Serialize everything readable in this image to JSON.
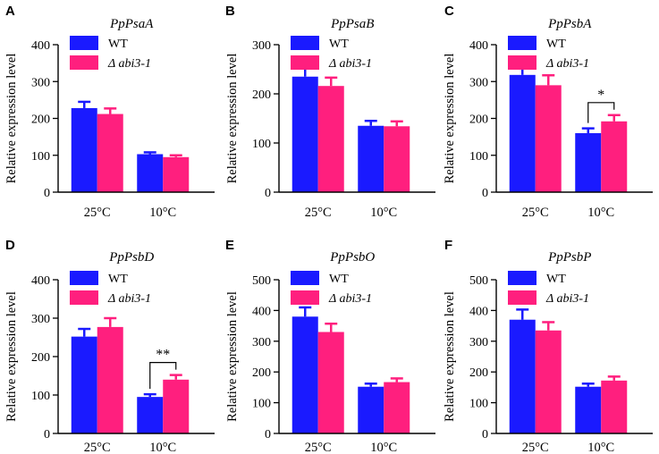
{
  "figure": {
    "legend": [
      {
        "name": "WT",
        "color": "#1a1aff"
      },
      {
        "name": "Δ abi3-1",
        "color": "#ff1f7e"
      }
    ],
    "error_color": {
      "WT": "#1a1aff",
      "mutant": "#ff1f7e"
    }
  },
  "chart_data": [
    {
      "panel": "A",
      "type": "bar",
      "title": "PpPsaA",
      "ylabel": "Relative expression level",
      "xlabel": "",
      "categories": [
        "25°C",
        "10°C"
      ],
      "ylim": [
        0,
        400
      ],
      "yticks": [
        0,
        100,
        200,
        300,
        400
      ],
      "series": [
        {
          "name": "WT",
          "values": [
            228,
            103
          ],
          "errors": [
            17,
            5
          ]
        },
        {
          "name": "Δ abi3-1",
          "values": [
            212,
            95
          ],
          "errors": [
            15,
            5
          ]
        }
      ],
      "significance": []
    },
    {
      "panel": "B",
      "type": "bar",
      "title": "PpPsaB",
      "ylabel": "Relative expression level",
      "xlabel": "",
      "categories": [
        "25°C",
        "10°C"
      ],
      "ylim": [
        0,
        300
      ],
      "yticks": [
        0,
        100,
        200,
        300
      ],
      "series": [
        {
          "name": "WT",
          "values": [
            235,
            135
          ],
          "errors": [
            20,
            10
          ]
        },
        {
          "name": "Δ abi3-1",
          "values": [
            216,
            134
          ],
          "errors": [
            17,
            10
          ]
        }
      ],
      "significance": []
    },
    {
      "panel": "C",
      "type": "bar",
      "title": "PpPsbA",
      "ylabel": "Relative expression level",
      "xlabel": "",
      "categories": [
        "25°C",
        "10°C"
      ],
      "ylim": [
        0,
        400
      ],
      "yticks": [
        0,
        100,
        200,
        300,
        400
      ],
      "series": [
        {
          "name": "WT",
          "values": [
            318,
            160
          ],
          "errors": [
            28,
            13
          ]
        },
        {
          "name": "Δ abi3-1",
          "values": [
            290,
            192
          ],
          "errors": [
            27,
            17
          ]
        }
      ],
      "significance": [
        {
          "category": "10°C",
          "label": "*"
        }
      ]
    },
    {
      "panel": "D",
      "type": "bar",
      "title": "PpPsbD",
      "ylabel": "Relative expression level",
      "xlabel": "",
      "categories": [
        "25°C",
        "10°C"
      ],
      "ylim": [
        0,
        400
      ],
      "yticks": [
        0,
        100,
        200,
        300,
        400
      ],
      "series": [
        {
          "name": "WT",
          "values": [
            252,
            95
          ],
          "errors": [
            20,
            7
          ]
        },
        {
          "name": "Δ abi3-1",
          "values": [
            277,
            140
          ],
          "errors": [
            23,
            12
          ]
        }
      ],
      "significance": [
        {
          "category": "10°C",
          "label": "**"
        }
      ]
    },
    {
      "panel": "E",
      "type": "bar",
      "title": "PpPsbO",
      "ylabel": "Relative expression level",
      "xlabel": "",
      "categories": [
        "25°C",
        "10°C"
      ],
      "ylim": [
        0,
        500
      ],
      "yticks": [
        0,
        100,
        200,
        300,
        400,
        500
      ],
      "series": [
        {
          "name": "WT",
          "values": [
            380,
            152
          ],
          "errors": [
            30,
            10
          ]
        },
        {
          "name": "Δ abi3-1",
          "values": [
            330,
            167
          ],
          "errors": [
            27,
            12
          ]
        }
      ],
      "significance": []
    },
    {
      "panel": "F",
      "type": "bar",
      "title": "PpPsbP",
      "ylabel": "Relative expression level",
      "xlabel": "",
      "categories": [
        "25°C",
        "10°C"
      ],
      "ylim": [
        0,
        500
      ],
      "yticks": [
        0,
        100,
        200,
        300,
        400,
        500
      ],
      "series": [
        {
          "name": "WT",
          "values": [
            370,
            152
          ],
          "errors": [
            33,
            10
          ]
        },
        {
          "name": "Δ abi3-1",
          "values": [
            335,
            172
          ],
          "errors": [
            27,
            13
          ]
        }
      ],
      "significance": []
    }
  ]
}
